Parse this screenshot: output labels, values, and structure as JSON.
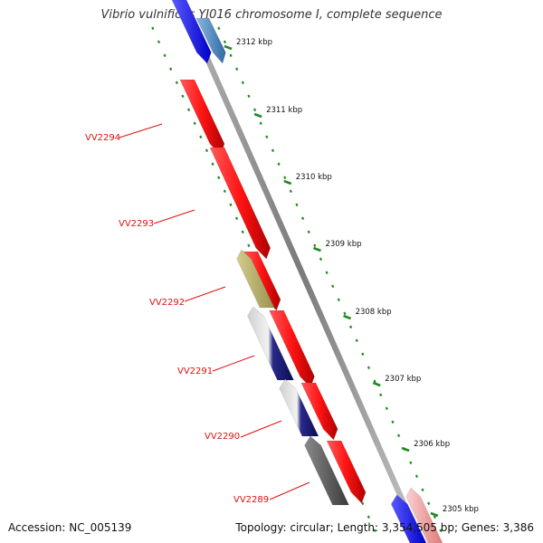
{
  "title": "Vibrio vulnificus YJ016 chromosome I, complete sequence",
  "accession": "Accession: NC_005139",
  "topology": "Topology: circular; Length: 3,354,505 bp; Genes: 3,386",
  "colors": {
    "backbone": "#8a8a8a",
    "tick_dots": "#1e8a1e",
    "forward_gene": "#ff1f1f",
    "label_red": "#e01010",
    "reverse_gene_blue": "#1a1aff",
    "reverse_gene_navy": "#101070",
    "reverse_gene_olive": "#b8b070",
    "reverse_gene_gray": "#555555",
    "reverse_gene_steel": "#4a88c0",
    "reverse_gene_pink": "#f0a0a0"
  },
  "ticks": [
    {
      "kbp": 2312,
      "label": "2312 kbp"
    },
    {
      "kbp": 2311,
      "label": "2311 kbp"
    },
    {
      "kbp": 2310,
      "label": "2310 kbp"
    },
    {
      "kbp": 2309,
      "label": "2309 kbp"
    },
    {
      "kbp": 2308,
      "label": "2308 kbp"
    },
    {
      "kbp": 2307,
      "label": "2307 kbp"
    },
    {
      "kbp": 2306,
      "label": "2306 kbp"
    },
    {
      "kbp": 2305,
      "label": "2305 kbp"
    }
  ],
  "gene_labels": [
    {
      "label": "VV2294"
    },
    {
      "label": "VV2293"
    },
    {
      "label": "VV2292"
    },
    {
      "label": "VV2291"
    },
    {
      "label": "VV2290"
    },
    {
      "label": "VV2289"
    }
  ],
  "icons": {
    "forward": "arrow-right-icon",
    "backbone": "chromosome-backbone"
  }
}
